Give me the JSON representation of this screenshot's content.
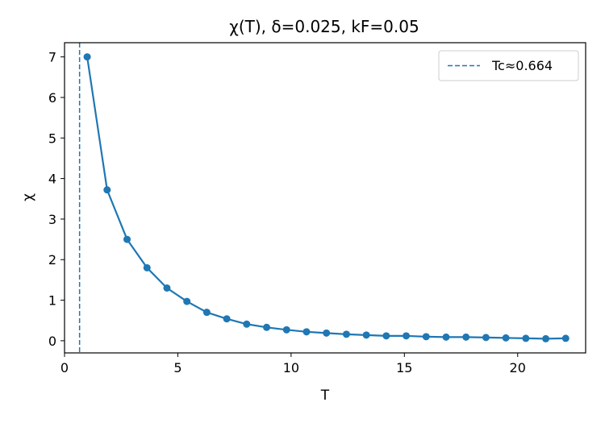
{
  "chart_data": {
    "type": "line",
    "title": "χ(T), δ=0.025, kF=0.05",
    "xlabel": "T",
    "ylabel": "χ",
    "xlim": [
      0,
      23
    ],
    "ylim": [
      -0.3,
      7.35
    ],
    "xticks": [
      0,
      5,
      10,
      15,
      20
    ],
    "yticks": [
      0,
      1,
      2,
      3,
      4,
      5,
      6,
      7
    ],
    "grid": false,
    "legend_position": "top-right",
    "series": [
      {
        "color": "#1f77b4",
        "x": [
          1.0,
          1.88,
          2.76,
          3.64,
          4.52,
          5.4,
          6.28,
          7.16,
          8.04,
          8.92,
          9.8,
          10.68,
          11.56,
          12.44,
          13.32,
          14.2,
          15.08,
          15.96,
          16.84,
          17.72,
          18.6,
          19.48,
          20.36,
          21.24,
          22.12
        ],
        "y": [
          7.0,
          3.72,
          2.5,
          1.8,
          1.3,
          0.97,
          0.7,
          0.54,
          0.41,
          0.33,
          0.27,
          0.22,
          0.19,
          0.16,
          0.14,
          0.12,
          0.12,
          0.1,
          0.09,
          0.09,
          0.08,
          0.07,
          0.06,
          0.05,
          0.06
        ]
      }
    ],
    "vline": {
      "x": 0.664,
      "label": "Tc≈0.664",
      "color": "#1f77b4",
      "style": "dashed"
    }
  }
}
